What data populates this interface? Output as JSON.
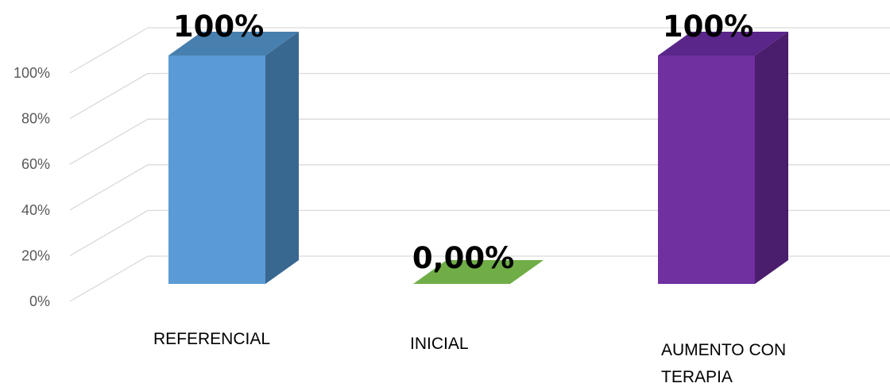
{
  "chart_data": {
    "type": "bar",
    "style": "3d-column",
    "categories": [
      "REFERENCIAL",
      "INICIAL",
      "AUMENTO CON TERAPIA"
    ],
    "category_lines": [
      [
        "REFERENCIAL"
      ],
      [
        "INICIAL"
      ],
      [
        "AUMENTO CON",
        "TERAPIA"
      ]
    ],
    "values": [
      100,
      0,
      100
    ],
    "data_labels": [
      "100%",
      "0,00%",
      "100%"
    ],
    "ylim": [
      0,
      100
    ],
    "y_ticks": [
      0,
      20,
      40,
      60,
      80,
      100
    ],
    "y_tick_labels": [
      "0%",
      "20%",
      "40%",
      "60%",
      "80%",
      "100%"
    ],
    "grid": true,
    "legend": "none",
    "colors": {
      "bars": [
        "#5b9bd5",
        "#70ad47",
        "#7030a0"
      ],
      "sides": [
        "#386790",
        "#4c7a30",
        "#4a1e6c"
      ],
      "tops": [
        "#477fae",
        "#70ad47",
        "#5a268a"
      ],
      "grid": "#d9d9d9",
      "tick_text": "#595959"
    }
  }
}
